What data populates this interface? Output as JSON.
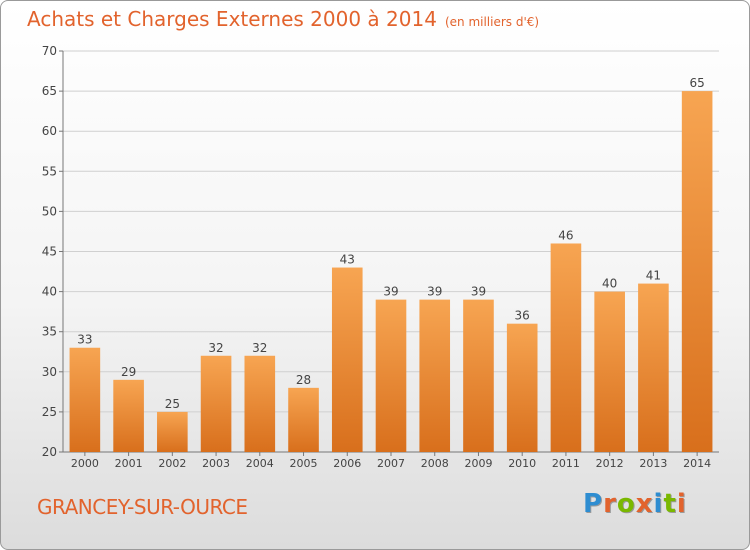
{
  "chart_data": {
    "type": "bar",
    "title": "Achats et Charges Externes 2000 à 2014",
    "subtitle": "(en milliers d'€)",
    "categories": [
      "2000",
      "2001",
      "2002",
      "2003",
      "2004",
      "2005",
      "2006",
      "2007",
      "2008",
      "2009",
      "2010",
      "2011",
      "2012",
      "2013",
      "2014"
    ],
    "values": [
      33,
      29,
      25,
      32,
      32,
      28,
      43,
      39,
      39,
      39,
      36,
      46,
      40,
      41,
      65
    ],
    "ylim": [
      20,
      70
    ],
    "yticks": [
      20,
      25,
      30,
      35,
      40,
      45,
      50,
      55,
      60,
      65,
      70
    ],
    "grid": true,
    "bar_color": "#e8822f",
    "grid_color": "#d0d0d0"
  },
  "footer": {
    "town": "GRANCEY-SUR-OURCE",
    "brand": "Proxiti",
    "brand_colors": [
      "#2e8dd1",
      "#e2632d",
      "#7ab800",
      "#e2632d",
      "#2e8dd1",
      "#7ab800",
      "#e2632d"
    ]
  }
}
